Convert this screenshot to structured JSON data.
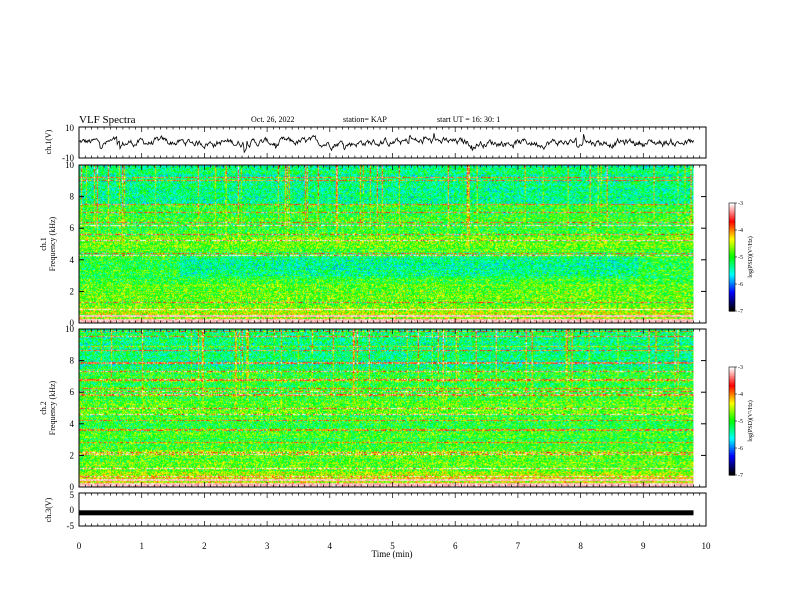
{
  "header": {
    "title": "VLF Spectra",
    "date": "Oct. 26, 2022",
    "station": "station= KAP",
    "start": "start  UT =   16: 30: 1"
  },
  "panels": {
    "ch1v": {
      "ylabel": "ch.1(V)",
      "ytick_top": "10",
      "ytick_bottom": "-10"
    },
    "spec1": {
      "ylabel_ch": "ch.1",
      "ylabel_q": "Frequency (kHz)"
    },
    "spec2": {
      "ylabel_ch": "ch.2",
      "ylabel_q": "Frequency (kHz)"
    },
    "ch3v": {
      "ylabel": "ch.3(V)",
      "ytick_top": "5",
      "ytick_mid": "0",
      "ytick_bottom": "-5"
    }
  },
  "colorbar": {
    "label": "log(PSD)(V²/Hz)",
    "ticks": [
      "-3",
      "-4",
      "-5",
      "-6",
      "-7"
    ],
    "colors": [
      "#ffffff",
      "#ff0000",
      "#ffff00",
      "#00ff00",
      "#00ffff",
      "#0000ff",
      "#000000"
    ]
  },
  "xaxis": {
    "label": "Time (min)",
    "ticks": [
      "0",
      "1",
      "2",
      "3",
      "4",
      "5",
      "6",
      "7",
      "8",
      "9",
      "10"
    ]
  },
  "chart_data": [
    {
      "type": "line",
      "name": "ch.1(V) waveform",
      "xlim": [
        0,
        10
      ],
      "ylim": [
        -10,
        10
      ],
      "data_extent_min": 9.8,
      "typical_range": [
        -5,
        5
      ]
    },
    {
      "type": "heatmap",
      "name": "ch.1 spectrogram",
      "xlim": [
        0,
        10
      ],
      "ylim": [
        0,
        10
      ],
      "yticks": [
        0,
        2,
        4,
        6,
        8,
        10
      ],
      "colorbar_range": [
        -7,
        -3
      ],
      "data_extent_min": 9.8
    },
    {
      "type": "heatmap",
      "name": "ch.2 spectrogram",
      "xlim": [
        0,
        10
      ],
      "ylim": [
        0,
        10
      ],
      "yticks": [
        0,
        2,
        4,
        6,
        8,
        10
      ],
      "colorbar_range": [
        -7,
        -3
      ],
      "data_extent_min": 9.8
    },
    {
      "type": "line",
      "name": "ch.3(V) waveform",
      "xlim": [
        0,
        10
      ],
      "ylim": [
        -5,
        5
      ],
      "data_extent_min": 9.8,
      "typical_value": -1
    }
  ]
}
